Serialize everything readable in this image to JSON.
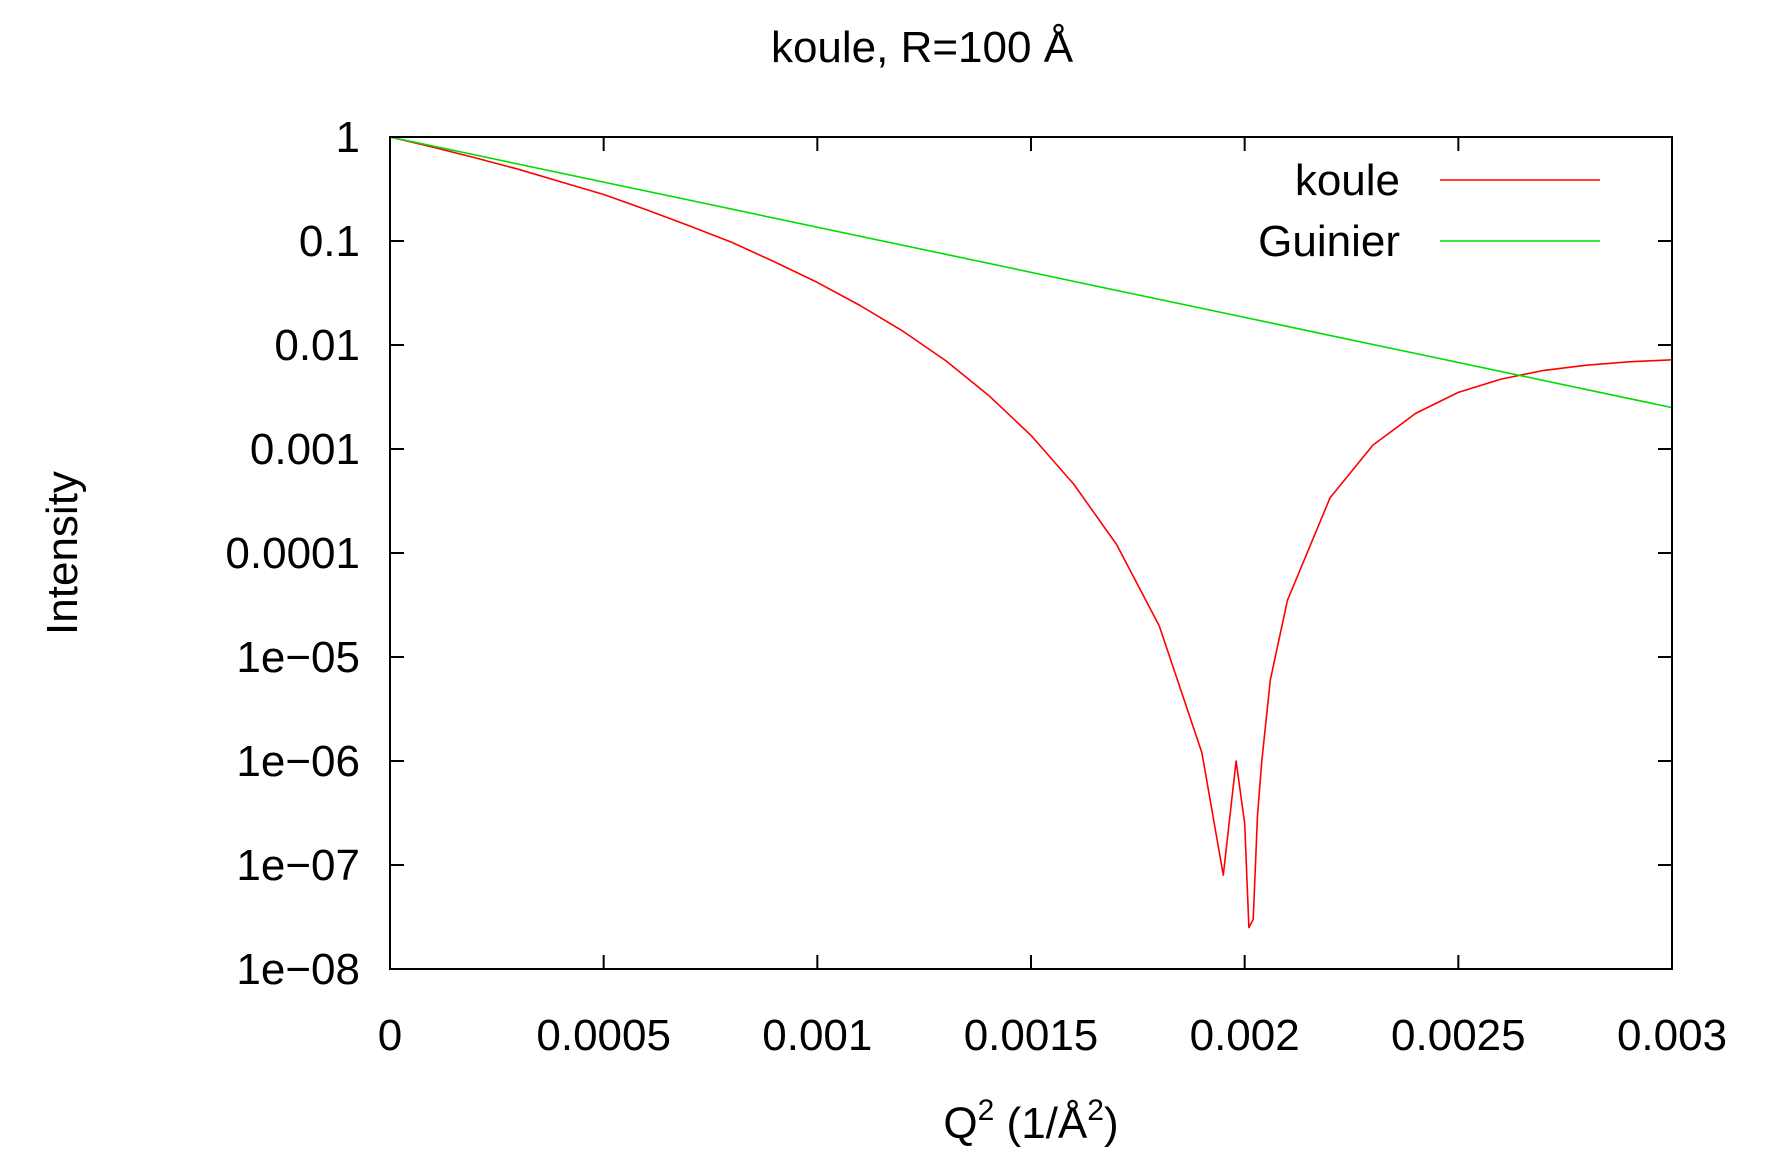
{
  "chart_data": {
    "type": "line",
    "title": "koule, R=100 Å",
    "xlabel": {
      "base": "Q",
      "sup": "2",
      "mid": " (1/Å",
      "sup2": "2",
      "tail": ")"
    },
    "ylabel": "Intensity",
    "xscale": "linear",
    "yscale": "log",
    "xlim": [
      0,
      0.003
    ],
    "ylim": [
      1e-08,
      1
    ],
    "grid": false,
    "legend_position": "top-right",
    "x_ticks": [
      {
        "value": 0,
        "label": "0"
      },
      {
        "value": 0.0005,
        "label": "0.0005"
      },
      {
        "value": 0.001,
        "label": "0.001"
      },
      {
        "value": 0.0015,
        "label": "0.0015"
      },
      {
        "value": 0.002,
        "label": "0.002"
      },
      {
        "value": 0.0025,
        "label": "0.0025"
      },
      {
        "value": 0.003,
        "label": "0.003"
      }
    ],
    "y_ticks": [
      {
        "value": 1,
        "label": "1"
      },
      {
        "value": 0.1,
        "label": "0.1"
      },
      {
        "value": 0.01,
        "label": "0.01"
      },
      {
        "value": 0.001,
        "label": "0.001"
      },
      {
        "value": 0.0001,
        "label": "0.0001"
      },
      {
        "value": 1e-05,
        "label": "1e−05"
      },
      {
        "value": 1e-06,
        "label": "1e−06"
      },
      {
        "value": 1e-07,
        "label": "1e−07"
      },
      {
        "value": 1e-08,
        "label": "1e−08"
      }
    ],
    "series": [
      {
        "name": "koule",
        "color": "#ff0000",
        "x": [
          0,
          0.0001,
          0.0002,
          0.0003,
          0.0004,
          0.0005,
          0.0006,
          0.0007,
          0.0008,
          0.0009,
          0.001,
          0.0011,
          0.0012,
          0.0013,
          0.0014,
          0.0015,
          0.0016,
          0.0017,
          0.0018,
          0.0019,
          0.00195,
          0.00198,
          0.002,
          0.00201,
          0.00202,
          0.00203,
          0.00204,
          0.00206,
          0.0021,
          0.0022,
          0.0023,
          0.0024,
          0.0025,
          0.0026,
          0.0027,
          0.0028,
          0.0029,
          0.003
        ],
        "y": [
          1,
          0.8,
          0.63,
          0.49,
          0.37,
          0.28,
          0.2,
          0.14,
          0.097,
          0.063,
          0.04,
          0.024,
          0.0136,
          0.0071,
          0.0033,
          0.00135,
          0.00046,
          0.000121,
          2e-05,
          1.2e-06,
          8e-08,
          1e-06,
          2.5e-07,
          2.5e-08,
          3e-08,
          3e-07,
          1e-06,
          6e-06,
          3.5e-05,
          0.00034,
          0.00109,
          0.0022,
          0.0035,
          0.0047,
          0.0057,
          0.0064,
          0.0069,
          0.0072
        ]
      },
      {
        "name": "Guinier",
        "color": "#00dd00",
        "x": [
          0,
          0.003
        ],
        "y": [
          1,
          0.0025
        ]
      }
    ]
  }
}
